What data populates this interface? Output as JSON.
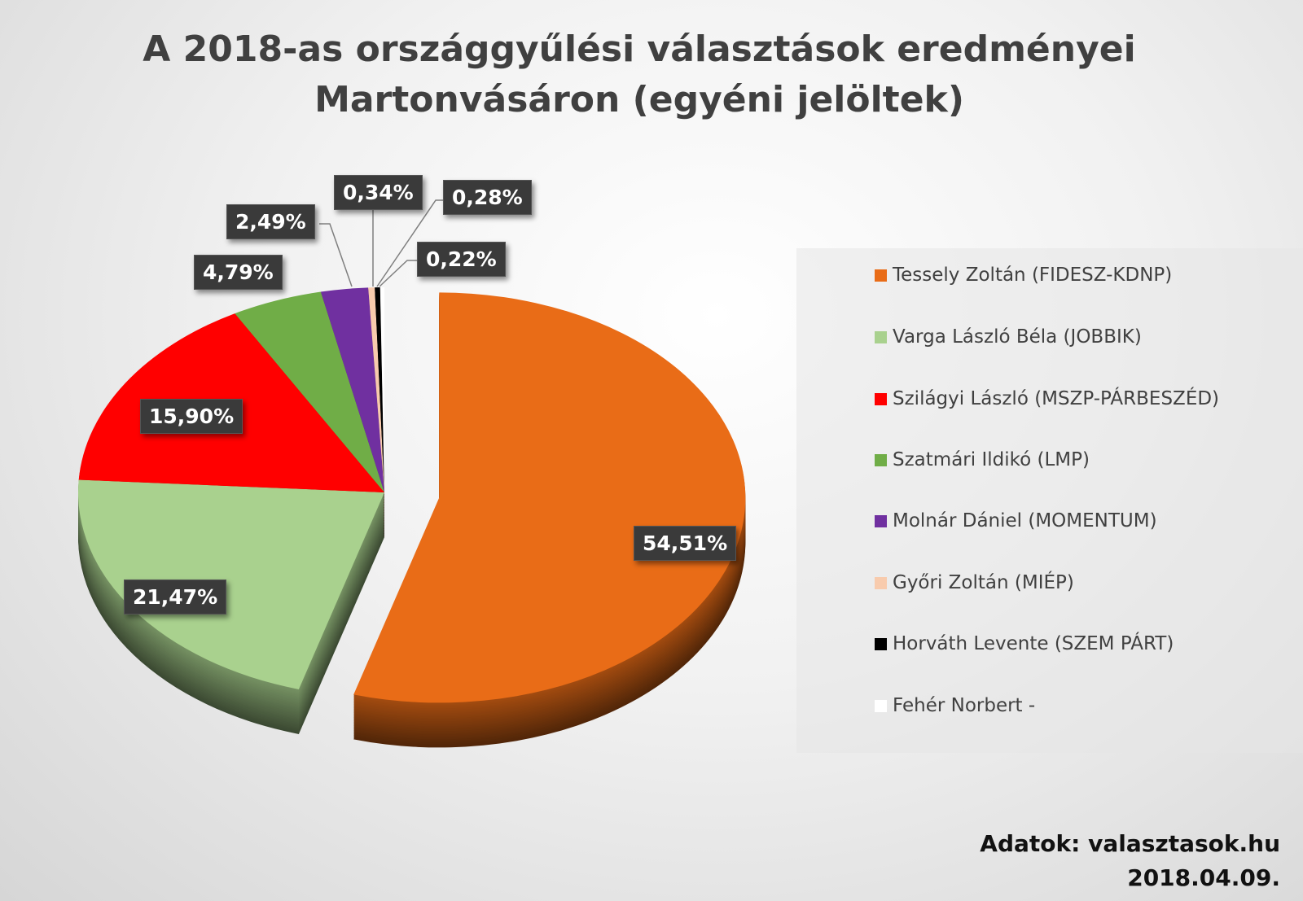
{
  "chart_data": {
    "type": "pie",
    "title_line1": "A 2018-as országgyűlési választások eredményei",
    "title_line2": "Martonvásáron (egyéni jelöltek)",
    "categories": [
      "Tessely Zoltán (FIDESZ-KDNP)",
      "Varga László Béla (JOBBIK)",
      "Szilágyi László (MSZP-PÁRBESZÉD)",
      "Szatmári Ildikó (LMP)",
      "Molnár Dániel (MOMENTUM)",
      "Győri Zoltán (MIÉP)",
      "Horváth Levente (SZEM PÁRT)",
      "Fehér Norbert -"
    ],
    "values": [
      54.51,
      21.47,
      15.9,
      4.79,
      2.49,
      0.34,
      0.28,
      0.22
    ],
    "labels": [
      "54,51%",
      "21,47%",
      "15,90%",
      "4,79%",
      "2,49%",
      "0,34%",
      "0,28%",
      "0,22%"
    ],
    "colors": [
      "#e96c17",
      "#a9d18e",
      "#ff0000",
      "#70ad47",
      "#7030a0",
      "#f8cbad",
      "#000000",
      "#ffffff"
    ],
    "legend_position": "right",
    "exploded": [
      "Tessely Zoltán (FIDESZ-KDNP)"
    ]
  },
  "source": {
    "line1": "Adatok: valasztasok.hu",
    "line2": "2018.04.09."
  }
}
